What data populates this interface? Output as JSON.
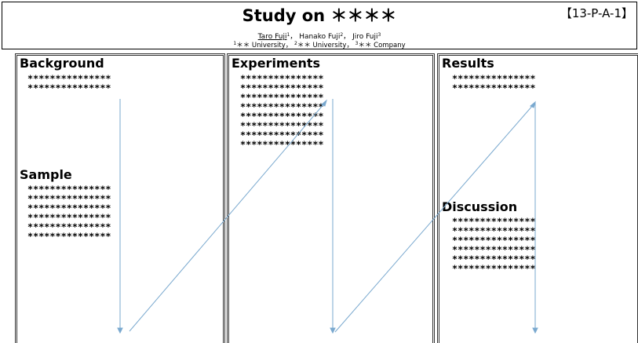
{
  "header": {
    "title": "Study on ＊＊＊＊",
    "poster_id": "【13-P-A-1】",
    "authors": [
      {
        "name": "Taro Fuji",
        "sup": "1",
        "sep": "，"
      },
      {
        "name": "Hanako Fuji",
        "sup": "2",
        "sep": "，"
      },
      {
        "name": "Jiro Fuji",
        "sup": "3",
        "sep": ""
      }
    ],
    "affiliations": [
      {
        "sup": "1",
        "name": "＊＊ University",
        "sep": "，"
      },
      {
        "sup": "2",
        "name": "＊＊ University",
        "sep": "，"
      },
      {
        "sup": "3",
        "name": "＊＊ Company",
        "sep": ""
      }
    ]
  },
  "sections": {
    "background": {
      "title": "Background",
      "lines": [
        "***************",
        "***************"
      ]
    },
    "sample": {
      "title": "Sample",
      "lines": [
        "***************",
        "***************",
        "***************",
        "***************",
        "***************",
        "***************"
      ]
    },
    "experiments": {
      "title": "Experiments",
      "lines": [
        "***************",
        "***************",
        "***************",
        "***************",
        "***************",
        "***************",
        "***************",
        "***************"
      ]
    },
    "results": {
      "title": "Results",
      "lines": [
        "***************",
        "***************"
      ]
    },
    "discussion": {
      "title": "Discussion",
      "lines": [
        "***************",
        "***************",
        "***************",
        "***************",
        "***************",
        "***************"
      ]
    }
  },
  "colors": {
    "arrow": "#7aa9cf",
    "border": "#333333"
  }
}
